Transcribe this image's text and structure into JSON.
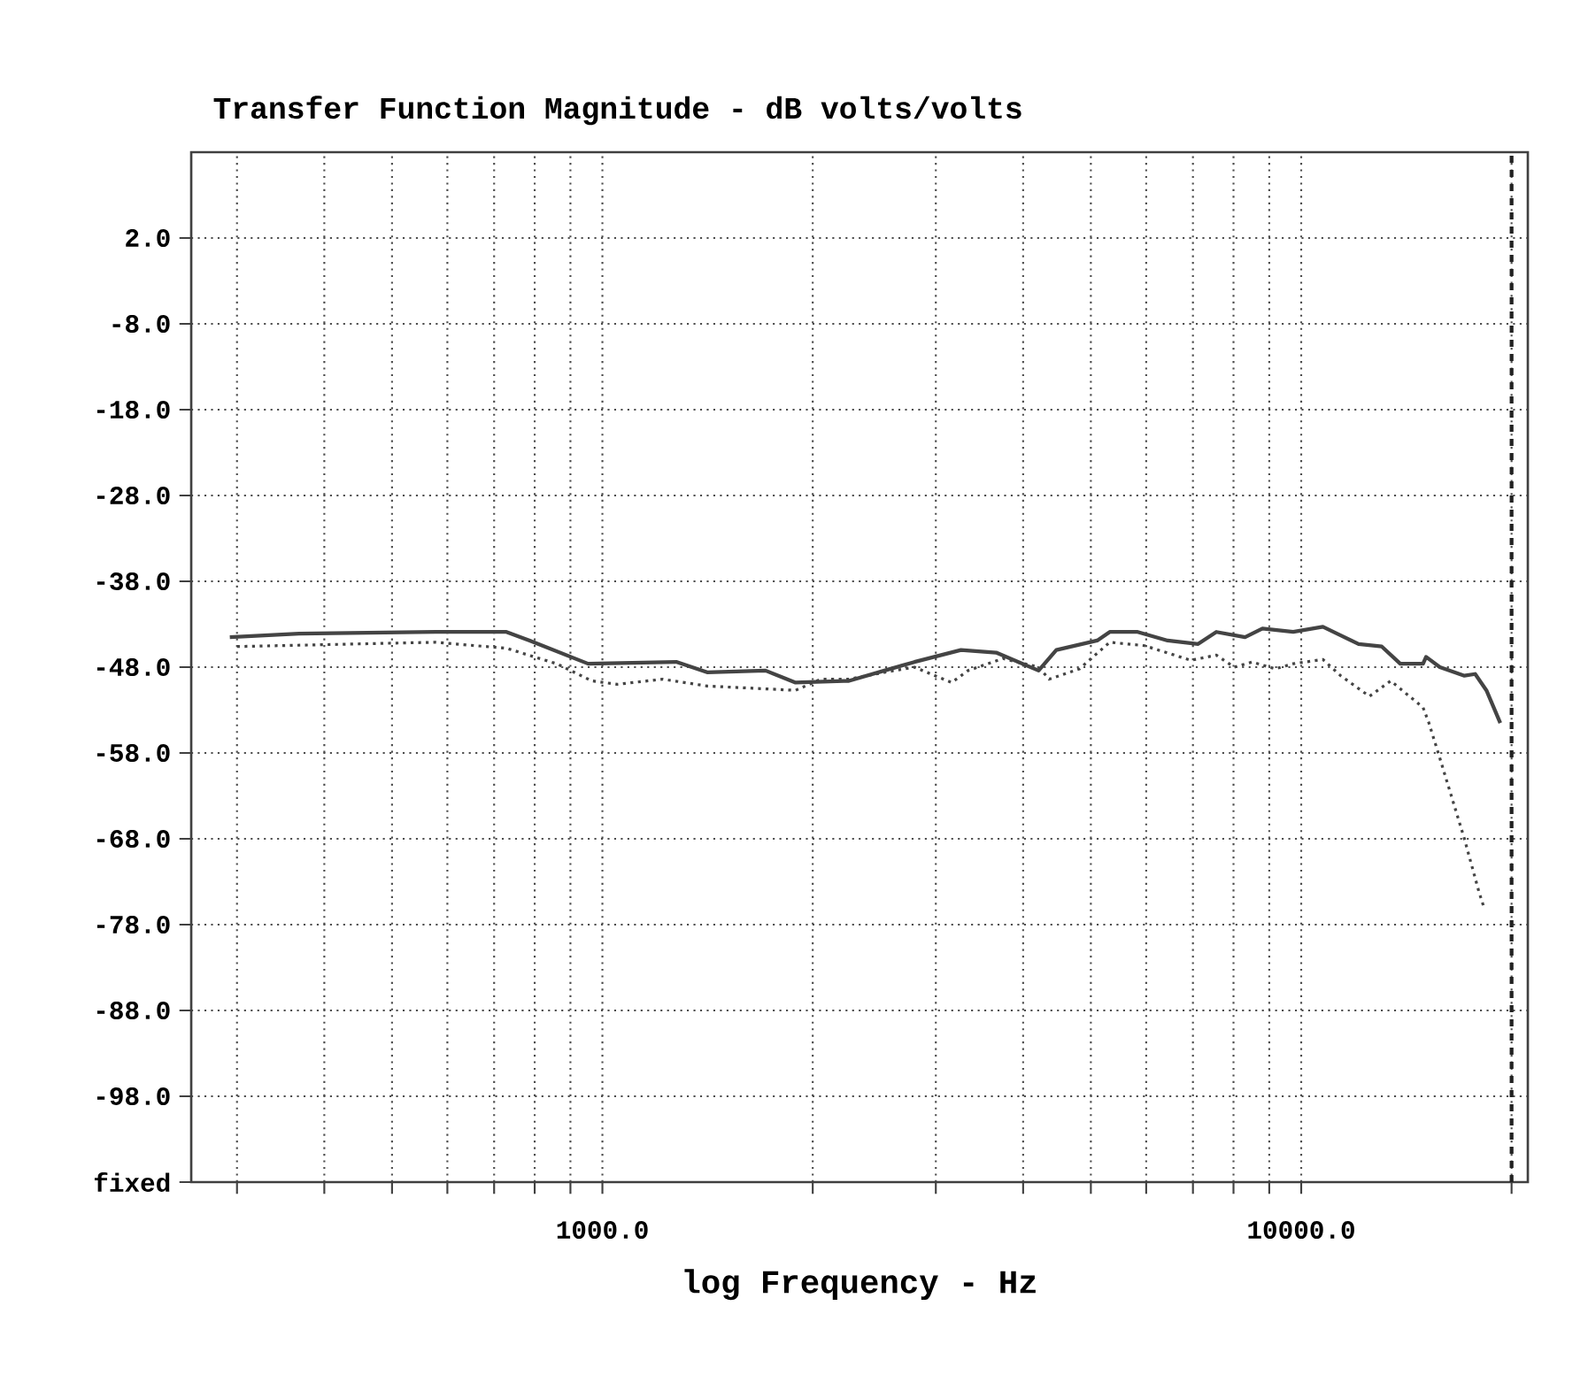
{
  "chart_data": {
    "type": "line",
    "title": "Transfer Function Magnitude - dB volts/volts",
    "xlabel": "log Frequency - Hz",
    "log": "x",
    "grid": true,
    "xlim": [
      258,
      21100
    ],
    "ylim": [
      -108,
      12
    ],
    "xticks": [
      {
        "value": 300,
        "label": null
      },
      {
        "value": 400,
        "label": null
      },
      {
        "value": 500,
        "label": null
      },
      {
        "value": 600,
        "label": null
      },
      {
        "value": 700,
        "label": null
      },
      {
        "value": 800,
        "label": null
      },
      {
        "value": 900,
        "label": null
      },
      {
        "value": 1000,
        "label": "1000.0"
      },
      {
        "value": 2000,
        "label": null
      },
      {
        "value": 3000,
        "label": null
      },
      {
        "value": 4000,
        "label": null
      },
      {
        "value": 5000,
        "label": null
      },
      {
        "value": 6000,
        "label": null
      },
      {
        "value": 7000,
        "label": null
      },
      {
        "value": 8000,
        "label": null
      },
      {
        "value": 9000,
        "label": null
      },
      {
        "value": 10000,
        "label": "10000.0"
      },
      {
        "value": 20000,
        "label": null
      }
    ],
    "yticks": [
      {
        "value": 2,
        "label": "2.0"
      },
      {
        "value": -8,
        "label": "-8.0"
      },
      {
        "value": -18,
        "label": "-18.0"
      },
      {
        "value": -28,
        "label": "-28.0"
      },
      {
        "value": -38,
        "label": "-38.0"
      },
      {
        "value": -48,
        "label": "-48.0"
      },
      {
        "value": -58,
        "label": "-58.0"
      },
      {
        "value": -68,
        "label": "-68.0"
      },
      {
        "value": -78,
        "label": "-78.0"
      },
      {
        "value": -88,
        "label": "-88.0"
      },
      {
        "value": -98,
        "label": "-98.0"
      },
      {
        "value": -108,
        "label": "fixed"
      }
    ],
    "ref_lines": [
      {
        "axis": "x",
        "value": 20000,
        "line_style": "dashed",
        "color": "#222222"
      }
    ],
    "series": [
      {
        "color": "#444444",
        "line_style": "solid",
        "x": [
          293,
          368,
          577,
          729,
          787,
          954,
          1278,
          1412,
          1712,
          1890,
          2215,
          2253,
          2533,
          2796,
          3259,
          3660,
          4209,
          4462,
          5105,
          5321,
          5835,
          6440,
          7120,
          7560,
          8310,
          8800,
          9740,
          10740,
          11390,
          12080,
          13040,
          13860,
          14940,
          15090,
          15790,
          17120,
          17740,
          18410,
          19270
        ],
        "values": [
          -44.5,
          -44.1,
          -43.9,
          -43.9,
          -44.9,
          -47.6,
          -47.4,
          -48.6,
          -48.4,
          -49.8,
          -49.6,
          -49.6,
          -48.4,
          -47.4,
          -46.0,
          -46.3,
          -48.4,
          -46.0,
          -44.9,
          -43.9,
          -43.9,
          -44.9,
          -45.3,
          -43.9,
          -44.5,
          -43.5,
          -43.9,
          -43.3,
          -44.3,
          -45.3,
          -45.6,
          -47.6,
          -47.6,
          -46.8,
          -48.0,
          -49.0,
          -48.8,
          -50.7,
          -54.5
        ]
      },
      {
        "color": "#444444",
        "line_style": "dotted",
        "x": [
          300,
          577,
          729,
          860,
          966,
          1050,
          1220,
          1412,
          1890,
          2055,
          2253,
          2533,
          2796,
          3160,
          3336,
          3745,
          4209,
          4359,
          4816,
          5321,
          5970,
          6950,
          7560,
          8020,
          8510,
          9180,
          9740,
          10740,
          11390,
          12520,
          13430,
          14940,
          15230,
          15790,
          17120,
          17950,
          18260
        ],
        "values": [
          -45.6,
          -45.1,
          -45.8,
          -47.6,
          -49.6,
          -50.0,
          -49.4,
          -50.2,
          -50.7,
          -49.4,
          -49.4,
          -48.6,
          -48.0,
          -49.8,
          -48.4,
          -47.0,
          -48.0,
          -49.4,
          -48.2,
          -45.1,
          -45.5,
          -47.2,
          -46.6,
          -48.0,
          -47.4,
          -48.2,
          -47.6,
          -47.1,
          -49.0,
          -51.4,
          -49.6,
          -52.7,
          -54.5,
          -58.6,
          -68.0,
          -74.1,
          -76.0
        ]
      }
    ]
  }
}
